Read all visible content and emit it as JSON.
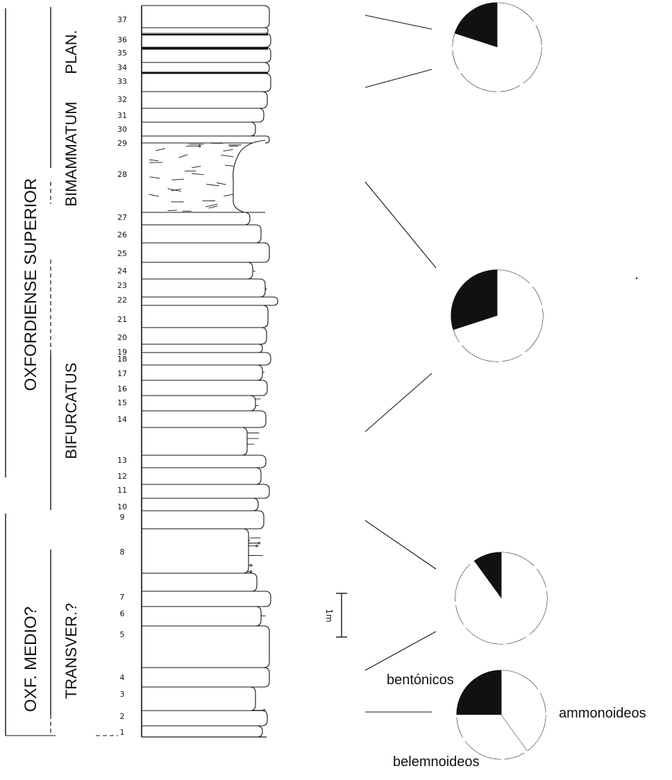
{
  "stages": {
    "oxfordiense_superior": "OXFORDIENSE SUPERIOR",
    "oxf_medio": "OXF. MEDIO?"
  },
  "zones": {
    "plan": "PLAN.",
    "bimammatum": "BIMAMMATUM",
    "bifurcatus": "BIFURCATUS",
    "transver": "TRANSVER.?"
  },
  "beds": [
    "1",
    "2",
    "3",
    "4",
    "5",
    "6",
    "7",
    "8",
    "9",
    "10",
    "11",
    "12",
    "13",
    "14",
    "15",
    "16",
    "17",
    "18",
    "19",
    "20",
    "21",
    "22",
    "23",
    "24",
    "25",
    "26",
    "27",
    "28",
    "29",
    "30",
    "31",
    "32",
    "33",
    "34",
    "35",
    "36",
    "37"
  ],
  "scale_label": "1m",
  "legend": {
    "bentonicos": "bentónicos",
    "ammonoideos": "ammonoideos",
    "belemnoideos": "belemnoideos"
  },
  "pies": [
    {
      "id": "pie-1",
      "near_beds": "1",
      "slices": [
        {
          "group": "ammonoideos",
          "fraction": 0.4,
          "fill": "white"
        },
        {
          "group": "belemnoideos",
          "fraction": 0.35,
          "fill": "white"
        },
        {
          "group": "bentonicos",
          "fraction": 0.25,
          "fill": "black"
        }
      ]
    },
    {
      "id": "pie-2",
      "near_beds": "4-9",
      "slices": [
        {
          "group": "ammonoideos",
          "fraction": 0.9,
          "fill": "white"
        },
        {
          "group": "bentonicos",
          "fraction": 0.1,
          "fill": "black"
        }
      ]
    },
    {
      "id": "pie-3",
      "near_beds": "14-28",
      "slices": [
        {
          "group": "ammonoideos",
          "fraction": 0.7,
          "fill": "white"
        },
        {
          "group": "bentonicos",
          "fraction": 0.3,
          "fill": "black"
        }
      ]
    },
    {
      "id": "pie-4",
      "near_beds": "33-37",
      "slices": [
        {
          "group": "ammonoideos",
          "fraction": 0.8,
          "fill": "white"
        },
        {
          "group": "bentonicos",
          "fraction": 0.12,
          "fill": "black"
        },
        {
          "group": "belemnoideos",
          "fraction": 0.08,
          "fill": "black"
        }
      ]
    }
  ],
  "colors": {
    "ink": "#111111",
    "paper": "#ffffff"
  }
}
